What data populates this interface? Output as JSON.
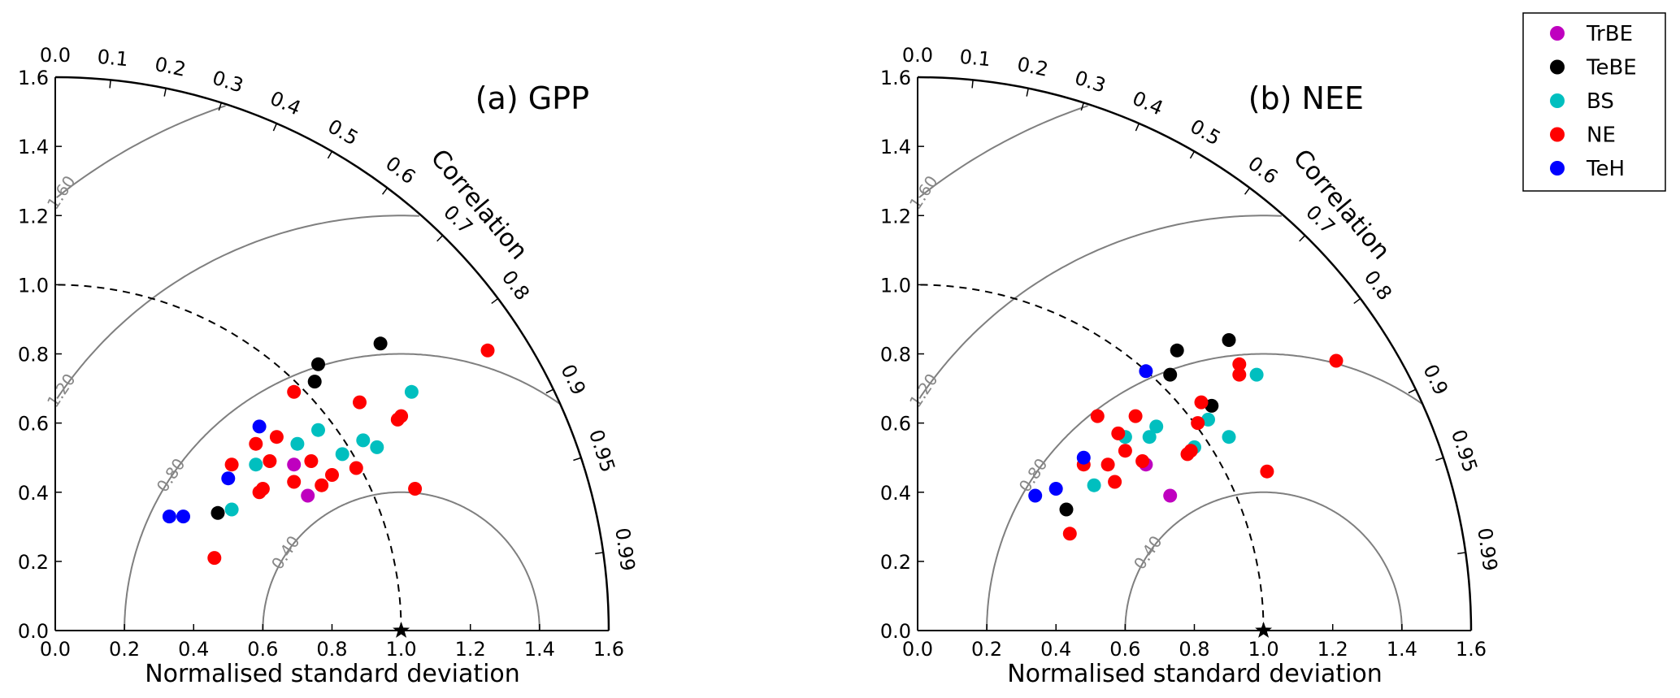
{
  "legend": {
    "placement": "top-right",
    "entries": [
      {
        "label": "TrBE",
        "color": "#bf00bf"
      },
      {
        "label": "TeBE",
        "color": "#000000"
      },
      {
        "label": "BS",
        "color": "#00bfbf"
      },
      {
        "label": "NE",
        "color": "#ff0000"
      },
      {
        "label": "TeH",
        "color": "#0000ff"
      }
    ]
  },
  "chart_data": [
    {
      "type": "taylor",
      "title": "(a) GPP",
      "xlabel": "Normalised standard deviation",
      "corr_label": "Correlation",
      "std_range": [
        0,
        1.6
      ],
      "std_ticks": [
        "0.0",
        "0.2",
        "0.4",
        "0.6",
        "0.8",
        "1.0",
        "1.2",
        "1.4",
        "1.6"
      ],
      "corr_ticks": [
        "0.0",
        "0.1",
        "0.2",
        "0.3",
        "0.4",
        "0.5",
        "0.6",
        "0.7",
        "0.8",
        "0.9",
        "0.95",
        "0.99"
      ],
      "rms_contours": [
        "0.40",
        "0.80",
        "1.20",
        "1.60"
      ],
      "reference_point": {
        "std": 1.0,
        "corr": 1.0
      },
      "series": [
        {
          "name": "TrBE",
          "points": [
            [
              0.69,
              0.48
            ],
            [
              0.73,
              0.39
            ]
          ]
        },
        {
          "name": "TeBE",
          "points": [
            [
              0.47,
              0.34
            ],
            [
              0.75,
              0.72
            ],
            [
              0.76,
              0.77
            ],
            [
              0.94,
              0.83
            ]
          ]
        },
        {
          "name": "BS",
          "points": [
            [
              0.51,
              0.35
            ],
            [
              0.58,
              0.48
            ],
            [
              0.7,
              0.54
            ],
            [
              0.76,
              0.58
            ],
            [
              0.83,
              0.51
            ],
            [
              0.89,
              0.55
            ],
            [
              0.93,
              0.53
            ],
            [
              1.03,
              0.69
            ]
          ]
        },
        {
          "name": "NE",
          "points": [
            [
              0.46,
              0.21
            ],
            [
              0.51,
              0.48
            ],
            [
              0.58,
              0.54
            ],
            [
              0.59,
              0.4
            ],
            [
              0.6,
              0.41
            ],
            [
              0.62,
              0.49
            ],
            [
              0.64,
              0.56
            ],
            [
              0.69,
              0.43
            ],
            [
              0.69,
              0.69
            ],
            [
              0.74,
              0.49
            ],
            [
              0.77,
              0.42
            ],
            [
              0.8,
              0.45
            ],
            [
              0.87,
              0.47
            ],
            [
              0.88,
              0.66
            ],
            [
              0.99,
              0.61
            ],
            [
              1.0,
              0.62
            ],
            [
              1.04,
              0.41
            ],
            [
              1.25,
              0.81
            ]
          ]
        },
        {
          "name": "TeH",
          "points": [
            [
              0.33,
              0.33
            ],
            [
              0.37,
              0.33
            ],
            [
              0.5,
              0.44
            ],
            [
              0.59,
              0.59
            ]
          ]
        }
      ]
    },
    {
      "type": "taylor",
      "title": "(b) NEE",
      "xlabel": "Normalised standard deviation",
      "corr_label": "Correlation",
      "std_range": [
        0,
        1.6
      ],
      "std_ticks": [
        "0.0",
        "0.2",
        "0.4",
        "0.6",
        "0.8",
        "1.0",
        "1.2",
        "1.4",
        "1.6"
      ],
      "corr_ticks": [
        "0.0",
        "0.1",
        "0.2",
        "0.3",
        "0.4",
        "0.5",
        "0.6",
        "0.7",
        "0.8",
        "0.9",
        "0.95",
        "0.99"
      ],
      "rms_contours": [
        "0.40",
        "0.80",
        "1.20",
        "1.60"
      ],
      "reference_point": {
        "std": 1.0,
        "corr": 1.0
      },
      "series": [
        {
          "name": "TrBE",
          "points": [
            [
              0.66,
              0.48
            ],
            [
              0.73,
              0.39
            ]
          ]
        },
        {
          "name": "TeBE",
          "points": [
            [
              0.43,
              0.35
            ],
            [
              0.73,
              0.74
            ],
            [
              0.75,
              0.81
            ],
            [
              0.85,
              0.65
            ],
            [
              0.9,
              0.84
            ]
          ]
        },
        {
          "name": "BS",
          "points": [
            [
              0.51,
              0.42
            ],
            [
              0.6,
              0.56
            ],
            [
              0.67,
              0.56
            ],
            [
              0.69,
              0.59
            ],
            [
              0.8,
              0.53
            ],
            [
              0.84,
              0.61
            ],
            [
              0.9,
              0.56
            ],
            [
              0.98,
              0.74
            ]
          ]
        },
        {
          "name": "NE",
          "points": [
            [
              0.44,
              0.28
            ],
            [
              0.48,
              0.48
            ],
            [
              0.52,
              0.62
            ],
            [
              0.55,
              0.48
            ],
            [
              0.57,
              0.43
            ],
            [
              0.58,
              0.57
            ],
            [
              0.6,
              0.52
            ],
            [
              0.63,
              0.62
            ],
            [
              0.65,
              0.49
            ],
            [
              0.78,
              0.51
            ],
            [
              0.79,
              0.52
            ],
            [
              0.81,
              0.6
            ],
            [
              0.82,
              0.66
            ],
            [
              0.93,
              0.74
            ],
            [
              0.93,
              0.77
            ],
            [
              1.01,
              0.46
            ],
            [
              1.21,
              0.78
            ]
          ]
        },
        {
          "name": "TeH",
          "points": [
            [
              0.34,
              0.39
            ],
            [
              0.4,
              0.41
            ],
            [
              0.48,
              0.5
            ],
            [
              0.66,
              0.75
            ]
          ]
        }
      ]
    }
  ]
}
